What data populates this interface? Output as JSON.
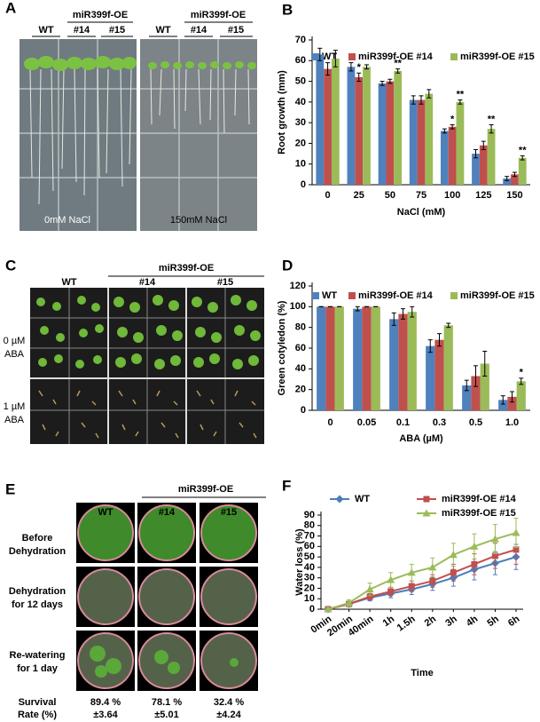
{
  "panels": {
    "letters": [
      "A",
      "B",
      "C",
      "D",
      "E",
      "F"
    ],
    "a": {
      "group": "miR399f-OE",
      "lines": [
        "WT",
        "#14",
        "#15"
      ],
      "conditions": [
        "0mM NaCl",
        "150mM NaCl"
      ]
    },
    "c": {
      "group": "miR399f-OE",
      "lines": [
        "WT",
        "#14",
        "#15"
      ],
      "rows": [
        [
          "0 µM",
          "ABA"
        ],
        [
          "1 µM",
          "ABA"
        ]
      ]
    },
    "e": {
      "group": "miR399f-OE",
      "lines": [
        "WT",
        "#14",
        "#15"
      ],
      "rows": [
        [
          "Before",
          "Dehydration"
        ],
        [
          "Dehydration",
          "for 12 days"
        ],
        [
          "Re-watering",
          "for 1 day"
        ]
      ],
      "survival_label": [
        "Survival",
        "Rate (%)"
      ],
      "survival": [
        [
          "89.4 %",
          "±3.64"
        ],
        [
          "78.1 %",
          "±5.01"
        ],
        [
          "32.4 %",
          "±4.24"
        ]
      ]
    }
  },
  "chart_data": [
    {
      "type": "bar",
      "ylabel": "Root growth (mm)",
      "xlabel": "NaCl (mM)",
      "categories": [
        "0",
        "25",
        "50",
        "75",
        "100",
        "125",
        "150"
      ],
      "ylim": [
        0,
        70
      ],
      "yticks": [
        0,
        10,
        20,
        30,
        40,
        50,
        60,
        70
      ],
      "series": [
        {
          "name": "WT",
          "color": "#4f81bd",
          "values": [
            63,
            57,
            49,
            41,
            26,
            15,
            3
          ],
          "errors": [
            3,
            2,
            1,
            2,
            1,
            2,
            1
          ],
          "significance": [
            null,
            null,
            null,
            null,
            null,
            null,
            null
          ]
        },
        {
          "name": "miR399f-OE #14",
          "color": "#c0504d",
          "values": [
            56,
            52,
            50,
            41,
            28,
            19,
            5
          ],
          "errors": [
            3,
            2,
            1,
            2,
            1,
            2,
            1
          ],
          "significance": [
            null,
            "*",
            null,
            null,
            "*",
            null,
            null
          ]
        },
        {
          "name": "miR399f-OE #15",
          "color": "#9bbb59",
          "values": [
            61,
            57,
            55,
            44,
            40,
            27,
            13
          ],
          "errors": [
            4,
            1,
            1,
            2,
            1,
            2,
            1
          ],
          "significance": [
            null,
            null,
            "**",
            null,
            "**",
            "**",
            "**"
          ]
        }
      ]
    },
    {
      "type": "bar",
      "ylabel": "Green cotyledon (%)",
      "xlabel": "ABA (µM)",
      "categories": [
        "0",
        "0.05",
        "0.1",
        "0.3",
        "0.5",
        "1.0"
      ],
      "ylim": [
        0,
        120
      ],
      "yticks": [
        0,
        20,
        40,
        60,
        80,
        100,
        120
      ],
      "series": [
        {
          "name": "WT",
          "color": "#4f81bd",
          "values": [
            100,
            98,
            88,
            62,
            24,
            10
          ],
          "errors": [
            0,
            2,
            6,
            6,
            5,
            4
          ],
          "significance": [
            null,
            null,
            null,
            null,
            null,
            null
          ]
        },
        {
          "name": "miR399f-OE #14",
          "color": "#c0504d",
          "values": [
            100,
            100,
            93,
            68,
            33,
            13
          ],
          "errors": [
            0,
            0,
            5,
            6,
            10,
            5
          ],
          "significance": [
            null,
            null,
            null,
            null,
            null,
            null
          ]
        },
        {
          "name": "miR399f-OE #15",
          "color": "#9bbb59",
          "values": [
            100,
            100,
            95,
            82,
            45,
            28
          ],
          "errors": [
            0,
            0,
            5,
            2,
            12,
            3
          ],
          "significance": [
            null,
            null,
            null,
            null,
            null,
            "*"
          ]
        }
      ]
    },
    {
      "type": "line",
      "ylabel": "Water loss (%)",
      "xlabel": "Time",
      "categories": [
        "0min",
        "20min",
        "40min",
        "1h",
        "1.5h",
        "2h",
        "3h",
        "4h",
        "5h",
        "6h"
      ],
      "ylim": [
        0,
        90
      ],
      "yticks": [
        0,
        10,
        20,
        30,
        40,
        50,
        60,
        70,
        80,
        90
      ],
      "series": [
        {
          "name": "WT",
          "color": "#4a7ebb",
          "marker": "diamond",
          "values": [
            0,
            5,
            11,
            15,
            19,
            24,
            30,
            38,
            44,
            50
          ],
          "errors": [
            1,
            2,
            3,
            4,
            5,
            6,
            8,
            10,
            11,
            12
          ]
        },
        {
          "name": "miR399f-OE #14",
          "color": "#c0504d",
          "marker": "square",
          "values": [
            0,
            5,
            12,
            17,
            22,
            27,
            35,
            43,
            51,
            57
          ],
          "errors": [
            1,
            2,
            3,
            4,
            5,
            6,
            8,
            10,
            12,
            14
          ]
        },
        {
          "name": "miR399f-OE #15",
          "color": "#9bbb59",
          "marker": "triangle",
          "values": [
            0,
            6,
            19,
            28,
            35,
            40,
            52,
            60,
            67,
            73
          ],
          "errors": [
            1,
            3,
            6,
            7,
            8,
            9,
            11,
            12,
            14,
            14
          ]
        }
      ]
    }
  ]
}
